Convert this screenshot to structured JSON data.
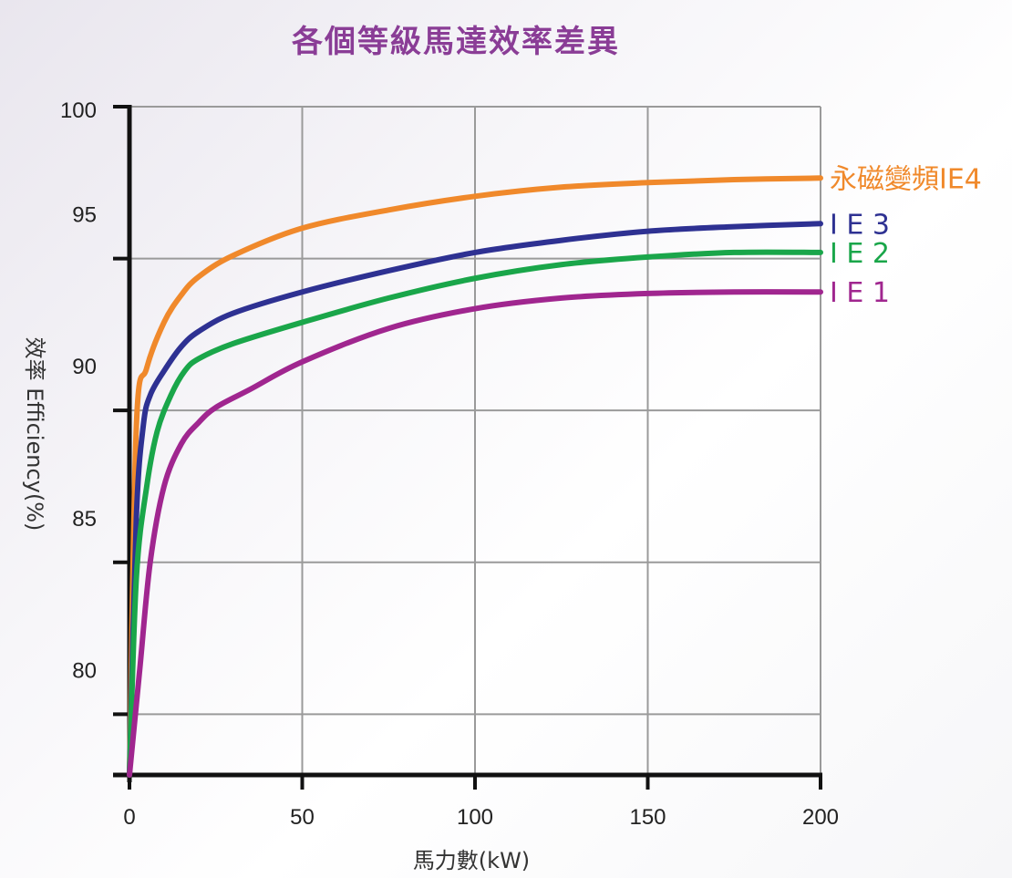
{
  "chart_data": {
    "type": "line",
    "title": "各個等級馬達效率差異",
    "xlabel": "馬力數(kW)",
    "ylabel": "效率 Efficiency(%)",
    "xlim": [
      0,
      200
    ],
    "ylim": [
      78,
      100
    ],
    "x_ticks": [
      0,
      50,
      100,
      150,
      200
    ],
    "y_ticks": [
      80,
      85,
      90,
      95,
      100
    ],
    "grid": true,
    "series": [
      {
        "name": "永磁變頻IE4",
        "color": "#f0892b",
        "x": [
          0,
          2,
          5,
          10,
          15,
          20,
          30,
          50,
          75,
          100,
          125,
          150,
          175,
          200
        ],
        "y": [
          78,
          89.5,
          91.4,
          92.9,
          93.8,
          94.4,
          95.1,
          96.0,
          96.6,
          97.05,
          97.35,
          97.5,
          97.6,
          97.65
        ]
      },
      {
        "name": "I E 3",
        "color": "#2e3192",
        "x": [
          0,
          2,
          4,
          6,
          10,
          15,
          20,
          30,
          50,
          75,
          100,
          125,
          150,
          175,
          200
        ],
        "y": [
          78,
          86.5,
          89.5,
          90.5,
          91.3,
          92.1,
          92.6,
          93.2,
          93.9,
          94.6,
          95.2,
          95.6,
          95.9,
          96.05,
          96.15
        ]
      },
      {
        "name": "I E 2",
        "color": "#1aa64a",
        "x": [
          0,
          2,
          5,
          8,
          12,
          16,
          20,
          30,
          50,
          75,
          100,
          125,
          150,
          175,
          200
        ],
        "y": [
          78,
          84.5,
          87.5,
          89.3,
          90.5,
          91.3,
          91.7,
          92.2,
          92.9,
          93.7,
          94.35,
          94.8,
          95.05,
          95.2,
          95.2
        ]
      },
      {
        "name": "I E 1",
        "color": "#a0268f",
        "x": [
          0,
          3,
          6,
          10,
          15,
          20,
          25,
          35,
          50,
          75,
          100,
          125,
          150,
          175,
          200
        ],
        "y": [
          78,
          81.5,
          85.0,
          87.5,
          88.9,
          89.6,
          90.1,
          90.7,
          91.6,
          92.7,
          93.35,
          93.7,
          93.85,
          93.9,
          93.9
        ]
      }
    ]
  }
}
